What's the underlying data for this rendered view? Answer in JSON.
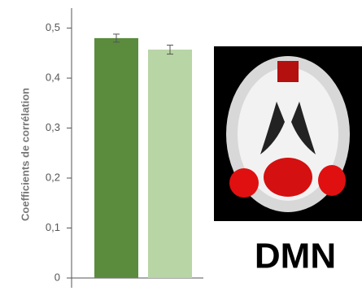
{
  "chart_data": {
    "type": "bar",
    "y_label": "Coefficients de corrélation",
    "categories": [
      null,
      null
    ],
    "values": [
      0.48,
      0.457
    ],
    "errors": [
      0.008,
      0.009
    ],
    "colors": [
      "#5b8c3e",
      "#b8d5a6"
    ],
    "ylim": [
      0,
      0.54
    ],
    "yticks": [
      0,
      {
        "value": 0.1,
        "label": "0,1"
      },
      {
        "value": 0.2,
        "label": "0,2"
      },
      {
        "value": 0.3,
        "label": "0,3"
      },
      {
        "value": 0.4,
        "label": "0,4"
      },
      {
        "value": 0.5,
        "label": "0,5"
      }
    ],
    "annotation": "DMN"
  }
}
